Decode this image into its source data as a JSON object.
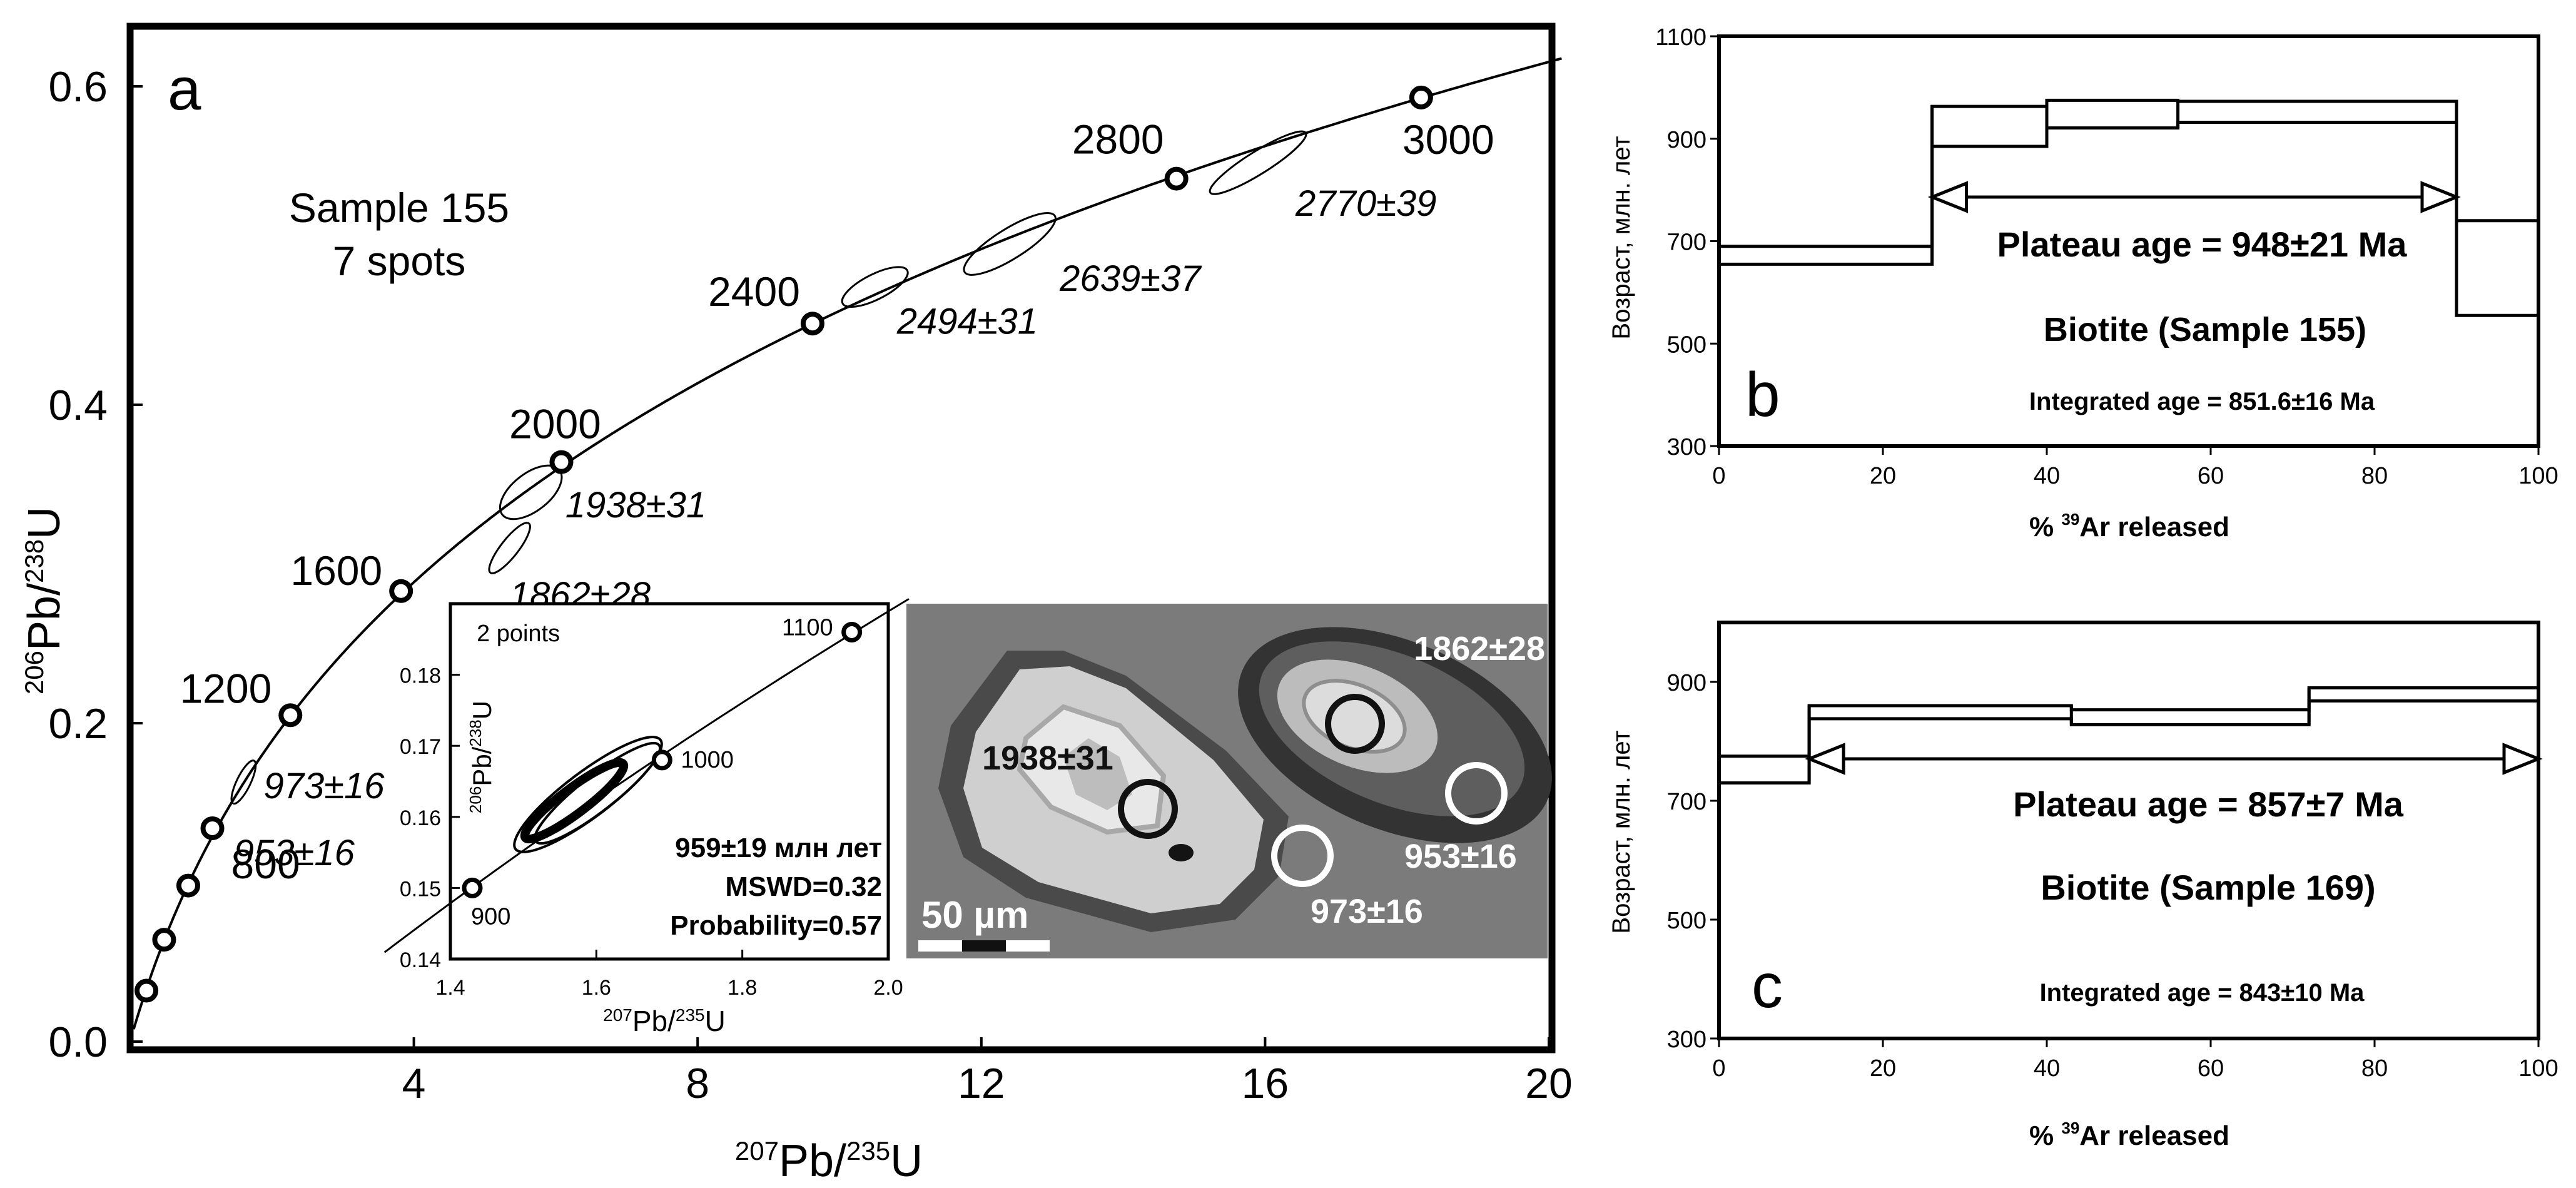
{
  "panel_a": {
    "panel_letter": "a",
    "sample_title": "Sample 155",
    "sample_subtitle": "7 spots",
    "chart_data": {
      "type": "scatter",
      "xlabel": "207Pb/235U",
      "ylabel": "206Pb/238U",
      "xlim": [
        0,
        20
      ],
      "ylim": [
        0,
        0.62
      ],
      "x_ticks": [
        "4",
        "8",
        "12",
        "16",
        "20"
      ],
      "y_ticks": [
        "0.0",
        "0.2",
        "0.4",
        "0.6"
      ],
      "concordia_points": [
        {
          "x": 0.23,
          "y": 0.032
        },
        {
          "x": 0.48,
          "y": 0.064
        },
        {
          "x": 0.82,
          "y": 0.098
        },
        {
          "x": 1.16,
          "y": 0.134
        },
        {
          "x": 2.26,
          "y": 0.205
        },
        {
          "x": 3.82,
          "y": 0.283
        },
        {
          "x": 6.08,
          "y": 0.364
        },
        {
          "x": 9.62,
          "y": 0.451
        },
        {
          "x": 14.75,
          "y": 0.542
        },
        {
          "x": 18.2,
          "y": 0.593
        }
      ],
      "concordia_labels": [
        {
          "label": "800",
          "x": 1.16,
          "y": 0.134
        },
        {
          "label": "1200",
          "x": 2.26,
          "y": 0.205
        },
        {
          "label": "1600",
          "x": 3.82,
          "y": 0.283
        },
        {
          "label": "2000",
          "x": 6.08,
          "y": 0.364
        },
        {
          "label": "2400",
          "x": 9.62,
          "y": 0.451
        },
        {
          "label": "2800",
          "x": 14.75,
          "y": 0.542
        },
        {
          "label": "3000",
          "x": 18.2,
          "y": 0.593
        }
      ],
      "ellipses": [
        {
          "label": "973±16",
          "x": 1.6,
          "y": 0.163
        },
        {
          "label": "953±16",
          "x": 1.55,
          "y": 0.158
        },
        {
          "label": "1862±28",
          "x": 5.35,
          "y": 0.31
        },
        {
          "label": "1938±31",
          "x": 5.65,
          "y": 0.345
        },
        {
          "label": "2494±31",
          "x": 10.5,
          "y": 0.474
        },
        {
          "label": "2639±37",
          "x": 12.4,
          "y": 0.501
        },
        {
          "label": "2770±39",
          "x": 15.9,
          "y": 0.552
        }
      ]
    }
  },
  "inset": {
    "title": "2 points",
    "result_age": "959±19 млн лет",
    "mswd": "MSWD=0.32",
    "probability": "Probability=0.57",
    "chart_data": {
      "type": "scatter",
      "xlabel": "207Pb/235U",
      "ylabel": "206Pb/238U",
      "xlim": [
        1.4,
        2.0
      ],
      "ylim": [
        0.14,
        0.19
      ],
      "x_ticks": [
        "1.4",
        "1.6",
        "1.8",
        "2.0"
      ],
      "y_ticks": [
        "0.14",
        "0.15",
        "0.16",
        "0.17",
        "0.18"
      ],
      "concordia_points": [
        {
          "label": "900",
          "x": 1.43,
          "y": 0.15
        },
        {
          "label": "1000",
          "x": 1.69,
          "y": 0.168
        },
        {
          "label": "1100",
          "x": 1.95,
          "y": 0.186
        }
      ]
    }
  },
  "image_panel": {
    "scale_label": "50 µm",
    "spots": [
      {
        "label": "1862±28"
      },
      {
        "label": "1938±31"
      },
      {
        "label": "973±16"
      },
      {
        "label": "953±16"
      }
    ]
  },
  "panel_b": {
    "panel_letter": "b",
    "plateau_label": "Plateau age = 948±21 Ma",
    "mineral_label": "Biotite (Sample 155)",
    "integrated_label": "Integrated age = 851.6±16 Ma",
    "chart_data": {
      "type": "area",
      "xlabel": "% 39Ar released",
      "ylabel": "Возраст,  млн. лет",
      "xlim": [
        0,
        100
      ],
      "ylim": [
        300,
        1100
      ],
      "x_ticks": [
        "0",
        "20",
        "40",
        "60",
        "80",
        "100"
      ],
      "y_ticks": [
        "300",
        "500",
        "700",
        "900",
        "1100"
      ],
      "plateau_range": [
        26,
        90
      ],
      "steps": [
        {
          "x0": 0,
          "x1": 26,
          "y_low": 655,
          "y_high": 690
        },
        {
          "x0": 26,
          "x1": 40,
          "y_low": 885,
          "y_high": 963
        },
        {
          "x0": 40,
          "x1": 56,
          "y_low": 921,
          "y_high": 975
        },
        {
          "x0": 56,
          "x1": 90,
          "y_low": 932,
          "y_high": 973
        },
        {
          "x0": 90,
          "x1": 100,
          "y_low": 555,
          "y_high": 740
        }
      ]
    }
  },
  "panel_c": {
    "panel_letter": "c",
    "plateau_label": "Plateau age = 857±7 Ma",
    "mineral_label": "Biotite (Sample 169)",
    "integrated_label": "Integrated age = 843±10 Ma",
    "chart_data": {
      "type": "area",
      "xlabel": "% 39Ar released",
      "ylabel": "Возраст,  млн. лет",
      "xlim": [
        0,
        100
      ],
      "ylim": [
        300,
        1000
      ],
      "x_ticks": [
        "0",
        "20",
        "40",
        "60",
        "80",
        "100"
      ],
      "y_ticks": [
        "300",
        "500",
        "700",
        "900"
      ],
      "plateau_range": [
        11,
        100
      ],
      "steps": [
        {
          "x0": 0,
          "x1": 11,
          "y_low": 730,
          "y_high": 775
        },
        {
          "x0": 11,
          "x1": 43,
          "y_low": 838,
          "y_high": 860
        },
        {
          "x0": 43,
          "x1": 72,
          "y_low": 828,
          "y_high": 853
        },
        {
          "x0": 72,
          "x1": 100,
          "y_low": 868,
          "y_high": 890
        }
      ]
    }
  }
}
